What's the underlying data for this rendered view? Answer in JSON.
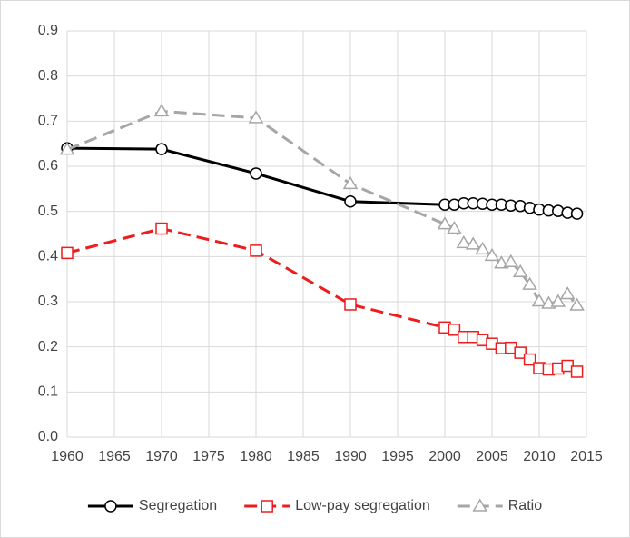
{
  "chart_data": {
    "type": "line",
    "x": [
      1960,
      1970,
      1980,
      1990,
      2000,
      2001,
      2002,
      2003,
      2004,
      2005,
      2006,
      2007,
      2008,
      2009,
      2010,
      2011,
      2012,
      2013,
      2014
    ],
    "series": [
      {
        "name": "Segregation",
        "color": "#000000",
        "marker": "circle",
        "dashed": false,
        "values": [
          0.64,
          0.638,
          0.584,
          0.522,
          0.515,
          0.515,
          0.518,
          0.518,
          0.517,
          0.515,
          0.515,
          0.513,
          0.512,
          0.508,
          0.504,
          0.502,
          0.501,
          0.497,
          0.495
        ]
      },
      {
        "name": "Low-pay segregation",
        "color": "#ee1c1c",
        "marker": "square",
        "dashed": true,
        "values": [
          0.408,
          0.462,
          0.413,
          0.294,
          0.243,
          0.238,
          0.222,
          0.222,
          0.215,
          0.207,
          0.197,
          0.198,
          0.187,
          0.172,
          0.153,
          0.15,
          0.152,
          0.158,
          0.145
        ]
      },
      {
        "name": "Ratio",
        "color": "#a6a6a6",
        "marker": "triangle",
        "dashed": true,
        "values": [
          0.637,
          0.722,
          0.707,
          0.561,
          0.472,
          0.462,
          0.43,
          0.427,
          0.416,
          0.402,
          0.385,
          0.388,
          0.366,
          0.338,
          0.301,
          0.296,
          0.3,
          0.317,
          0.292
        ]
      }
    ],
    "xlim": [
      1960,
      2015
    ],
    "xticks": [
      1960,
      1965,
      1970,
      1975,
      1980,
      1985,
      1990,
      1995,
      2000,
      2005,
      2010,
      2015
    ],
    "ylim": [
      0,
      0.9
    ],
    "yticks": [
      {
        "value": 0,
        "label": "0.0"
      },
      0.1,
      0.2,
      0.3,
      0.4,
      0.5,
      0.6,
      0.7,
      0.8,
      0.9
    ],
    "grid": true,
    "legend": "bottom"
  }
}
